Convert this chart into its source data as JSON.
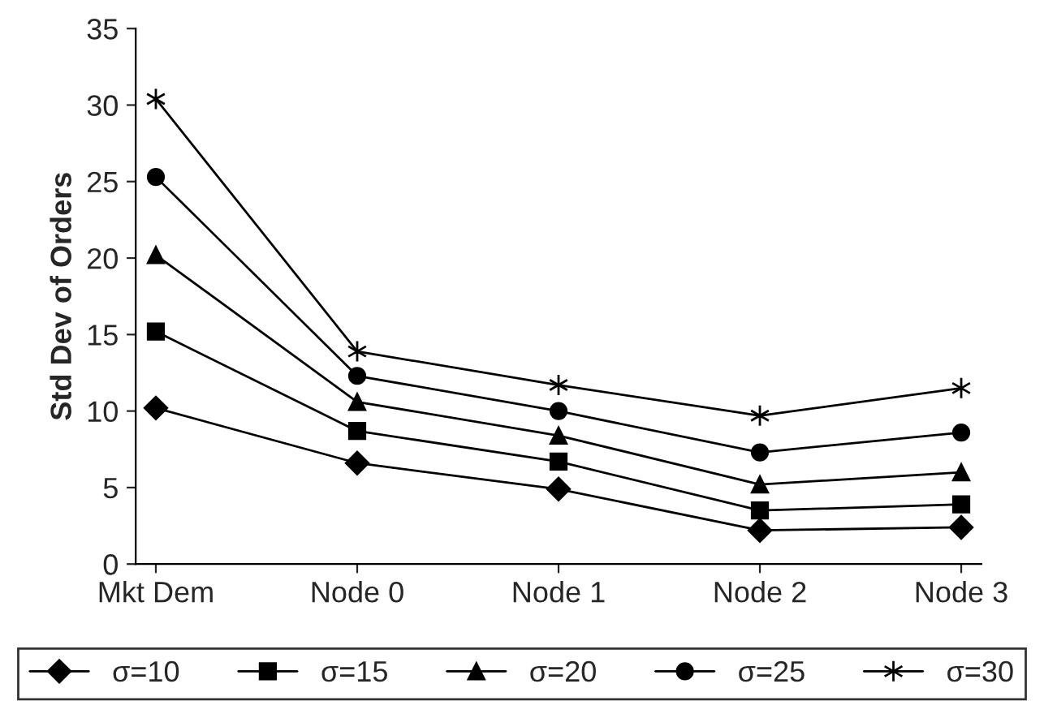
{
  "chart_data": {
    "type": "line",
    "ylabel": "Std Dev of Orders",
    "categories": [
      "Mkt Dem",
      "Node 0",
      "Node 1",
      "Node 2",
      "Node 3"
    ],
    "series": [
      {
        "name": "σ=10",
        "color": "#000000",
        "marker": "diamond",
        "values": [
          10.2,
          6.6,
          4.9,
          2.2,
          2.4
        ]
      },
      {
        "name": "σ=15",
        "color": "#000000",
        "marker": "square",
        "values": [
          15.2,
          8.7,
          6.7,
          3.5,
          3.9
        ]
      },
      {
        "name": "σ=20",
        "color": "#000000",
        "marker": "triangle",
        "values": [
          20.2,
          10.6,
          8.4,
          5.2,
          6.0
        ]
      },
      {
        "name": "σ=25",
        "color": "#000000",
        "marker": "circle",
        "values": [
          25.3,
          12.3,
          10.0,
          7.3,
          8.6
        ]
      },
      {
        "name": "σ=30",
        "color": "#000000",
        "marker": "cross",
        "values": [
          30.4,
          13.9,
          11.7,
          9.7,
          11.5
        ]
      }
    ],
    "ylim": [
      0,
      35
    ],
    "yticks": [
      0,
      5,
      10,
      15,
      20,
      25,
      30,
      35
    ],
    "grid": false,
    "legend": "bottom"
  }
}
